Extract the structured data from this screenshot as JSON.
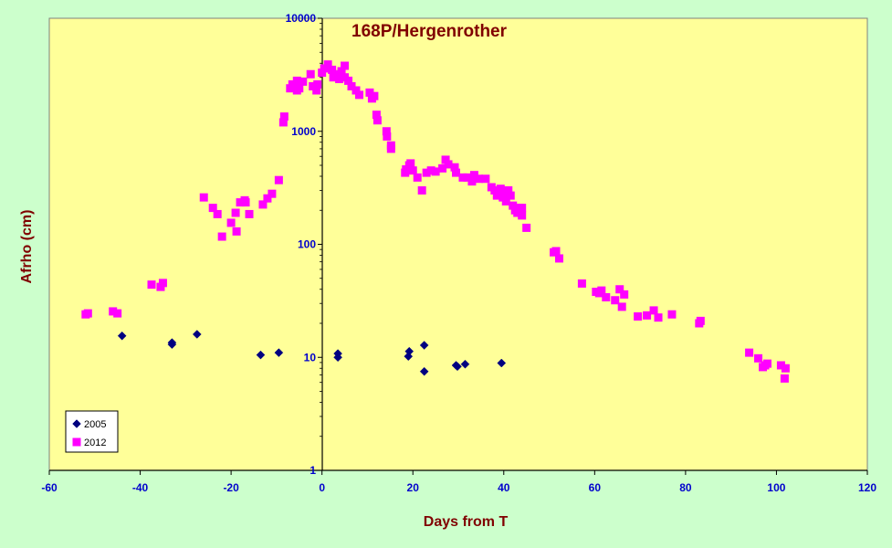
{
  "chart_data": {
    "type": "scatter",
    "title": "168P/Hergenrother",
    "xlabel": "Days from T",
    "ylabel": "Afrho (cm)",
    "xlim": [
      -60,
      120
    ],
    "ylim": [
      1,
      10000
    ],
    "y_scale": "log",
    "x_ticks": [
      -60,
      -40,
      -20,
      0,
      20,
      40,
      60,
      80,
      100,
      120
    ],
    "x_tick_labels": [
      "-60",
      "-40",
      "-20",
      "0",
      "20",
      "40",
      "60",
      "80",
      "100",
      "120"
    ],
    "y_ticks": [
      1,
      10,
      100,
      1000,
      10000
    ],
    "y_tick_labels": [
      "1",
      "10",
      "100",
      "1000",
      "10000"
    ],
    "grid": false,
    "legend_position": "bottom-left",
    "colors": {
      "page_background": "#CCFFCC",
      "plot_background": "#FFFF99",
      "series_2005": "#000080",
      "series_2012": "#FF00FF",
      "title": "#800000",
      "ticks": "#0000CC"
    },
    "series": [
      {
        "name": "2005",
        "marker": "diamond",
        "points": [
          [
            -44,
            15.5
          ],
          [
            -33,
            13
          ],
          [
            -33,
            13.5
          ],
          [
            -27.5,
            16
          ],
          [
            -13.5,
            10.5
          ],
          [
            -9.5,
            11
          ],
          [
            3.5,
            10
          ],
          [
            3.5,
            10.8
          ],
          [
            19,
            10.2
          ],
          [
            19.2,
            11.3
          ],
          [
            22.5,
            12.8
          ],
          [
            22.5,
            7.5
          ],
          [
            29.5,
            8.5
          ],
          [
            29.8,
            8.3
          ],
          [
            31.5,
            8.7
          ],
          [
            39.5,
            8.9
          ]
        ]
      },
      {
        "name": "2012",
        "marker": "square",
        "points": [
          [
            -52,
            24
          ],
          [
            -51.5,
            24.5
          ],
          [
            -46,
            25.5
          ],
          [
            -45,
            24.5
          ],
          [
            -37.5,
            44
          ],
          [
            -35.5,
            42
          ],
          [
            -35,
            45.5
          ],
          [
            -26,
            260
          ],
          [
            -24,
            210
          ],
          [
            -23,
            185
          ],
          [
            -22,
            117
          ],
          [
            -20,
            155
          ],
          [
            -19,
            190
          ],
          [
            -18.8,
            130
          ],
          [
            -18,
            235
          ],
          [
            -17,
            245
          ],
          [
            -16.8,
            235
          ],
          [
            -16,
            185
          ],
          [
            -13,
            225
          ],
          [
            -12,
            255
          ],
          [
            -11,
            280
          ],
          [
            -9.5,
            370
          ],
          [
            -8.5,
            1200
          ],
          [
            -8.3,
            1350
          ],
          [
            -7,
            2400
          ],
          [
            -6.5,
            2600
          ],
          [
            -5.5,
            2300
          ],
          [
            -5.5,
            2800
          ],
          [
            -5,
            2400
          ],
          [
            -4.2,
            2750
          ],
          [
            -2.5,
            3200
          ],
          [
            -2,
            2500
          ],
          [
            -1.2,
            2300
          ],
          [
            -1,
            2600
          ],
          [
            0,
            3300
          ],
          [
            0.5,
            3600
          ],
          [
            1.3,
            3900
          ],
          [
            2.2,
            3500
          ],
          [
            2.5,
            3000
          ],
          [
            3.3,
            3200
          ],
          [
            3.8,
            2900
          ],
          [
            4.3,
            3400
          ],
          [
            5,
            3800
          ],
          [
            5,
            3000
          ],
          [
            5.8,
            2800
          ],
          [
            6.5,
            2500
          ],
          [
            7.5,
            2300
          ],
          [
            8.2,
            2100
          ],
          [
            10.5,
            2200
          ],
          [
            11,
            1950
          ],
          [
            11.5,
            2050
          ],
          [
            12,
            1400
          ],
          [
            12.2,
            1250
          ],
          [
            14.2,
            1000
          ],
          [
            14.3,
            900
          ],
          [
            15.2,
            750
          ],
          [
            15.2,
            700
          ],
          [
            18.3,
            430
          ],
          [
            18.5,
            460
          ],
          [
            19.2,
            500
          ],
          [
            19.5,
            520
          ],
          [
            20,
            450
          ],
          [
            21,
            390
          ],
          [
            22,
            300
          ],
          [
            23,
            430
          ],
          [
            24,
            450
          ],
          [
            25,
            440
          ],
          [
            26.5,
            470
          ],
          [
            27.2,
            560
          ],
          [
            27.8,
            510
          ],
          [
            29.2,
            480
          ],
          [
            29.5,
            430
          ],
          [
            31,
            390
          ],
          [
            32,
            390
          ],
          [
            33,
            360
          ],
          [
            33.5,
            410
          ],
          [
            34.5,
            380
          ],
          [
            36,
            380
          ],
          [
            37.3,
            320
          ],
          [
            38,
            300
          ],
          [
            38.5,
            270
          ],
          [
            39.3,
            310
          ],
          [
            39.8,
            260
          ],
          [
            40.2,
            280
          ],
          [
            40.5,
            240
          ],
          [
            41,
            300
          ],
          [
            41.5,
            270
          ],
          [
            42,
            220
          ],
          [
            42.5,
            200
          ],
          [
            43,
            190
          ],
          [
            43.5,
            210
          ],
          [
            44,
            180
          ],
          [
            44,
            210
          ],
          [
            45,
            140
          ],
          [
            51,
            85
          ],
          [
            51.5,
            87
          ],
          [
            52.2,
            75
          ],
          [
            57.2,
            45
          ],
          [
            60.3,
            38
          ],
          [
            61,
            37
          ],
          [
            61.5,
            39
          ],
          [
            62.5,
            34
          ],
          [
            64.5,
            32
          ],
          [
            65.5,
            40
          ],
          [
            66,
            28
          ],
          [
            66.5,
            36
          ],
          [
            69.5,
            23
          ],
          [
            71.5,
            23.5
          ],
          [
            73,
            26
          ],
          [
            74,
            22.5
          ],
          [
            77,
            24
          ],
          [
            83,
            20
          ],
          [
            83.3,
            21
          ],
          [
            94,
            11
          ],
          [
            96,
            9.8
          ],
          [
            97,
            8.2
          ],
          [
            97.5,
            8.5
          ],
          [
            98,
            8.8
          ],
          [
            101,
            8.5
          ],
          [
            101.8,
            6.5
          ],
          [
            102,
            8
          ]
        ]
      }
    ]
  }
}
